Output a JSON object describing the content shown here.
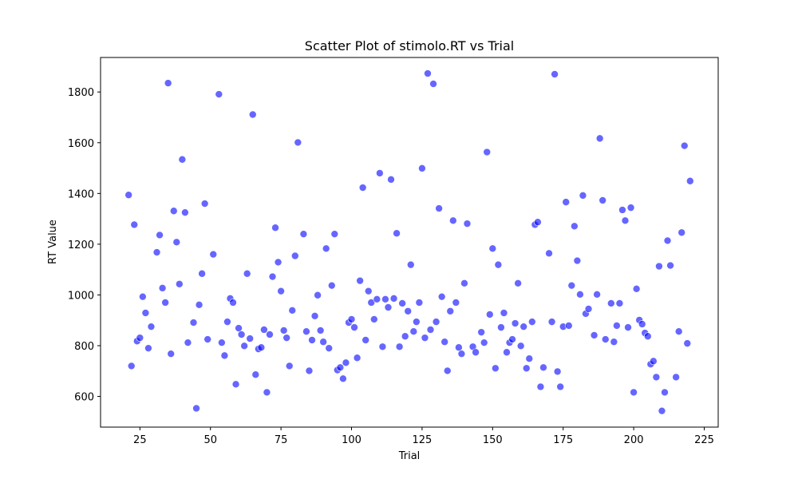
{
  "chart_data": {
    "type": "scatter",
    "title": "Scatter Plot of stimolo.RT vs Trial",
    "xlabel": "Trial",
    "ylabel": "RT Value",
    "color": "#0000ff",
    "alpha": 0.6,
    "x": [
      21,
      22,
      23,
      24,
      25,
      26,
      27,
      28,
      29,
      31,
      32,
      33,
      34,
      35,
      36,
      37,
      38,
      39,
      40,
      41,
      42,
      44,
      45,
      46,
      47,
      48,
      49,
      51,
      53,
      54,
      55,
      56,
      57,
      58,
      59,
      60,
      61,
      62,
      63,
      64,
      65,
      66,
      67,
      68,
      69,
      70,
      71,
      72,
      73,
      74,
      75,
      76,
      77,
      78,
      79,
      80,
      81,
      83,
      84,
      85,
      86,
      87,
      88,
      89,
      90,
      91,
      92,
      93,
      94,
      95,
      96,
      97,
      98,
      99,
      100,
      101,
      102,
      103,
      104,
      105,
      106,
      107,
      108,
      109,
      110,
      111,
      112,
      113,
      114,
      115,
      116,
      117,
      118,
      119,
      120,
      121,
      122,
      123,
      124,
      125,
      126,
      127,
      128,
      129,
      130,
      131,
      132,
      133,
      134,
      135,
      136,
      137,
      138,
      139,
      140,
      141,
      143,
      144,
      146,
      147,
      148,
      149,
      150,
      151,
      152,
      153,
      154,
      155,
      156,
      157,
      158,
      159,
      160,
      161,
      162,
      163,
      164,
      165,
      166,
      167,
      168,
      170,
      171,
      172,
      173,
      174,
      175,
      176,
      177,
      178,
      179,
      180,
      181,
      182,
      183,
      184,
      186,
      187,
      188,
      189,
      190,
      192,
      193,
      194,
      195,
      196,
      197,
      198,
      199,
      200,
      201,
      202,
      203,
      204,
      205,
      206,
      207,
      208,
      209,
      210,
      211,
      212,
      213,
      215,
      216,
      217,
      218,
      219,
      220
    ],
    "y": [
      1394,
      720,
      1277,
      818,
      831,
      993,
      929,
      790,
      875,
      1168,
      1236,
      1027,
      970,
      1835,
      768,
      1331,
      1208,
      1043,
      1534,
      1325,
      812,
      891,
      553,
      961,
      1084,
      1360,
      825,
      1160,
      1791,
      812,
      761,
      894,
      986,
      970,
      648,
      869,
      844,
      799,
      1084,
      828,
      1711,
      686,
      787,
      793,
      863,
      616,
      844,
      1072,
      1265,
      1129,
      1015,
      860,
      831,
      720,
      939,
      1154,
      1601,
      1240,
      856,
      701,
      822,
      917,
      999,
      860,
      815,
      1183,
      790,
      1037,
      1240,
      704,
      714,
      670,
      733,
      891,
      904,
      872,
      752,
      1056,
      1423,
      822,
      1015,
      970,
      904,
      983,
      1480,
      796,
      983,
      951,
      1455,
      986,
      1243,
      796,
      967,
      837,
      936,
      1119,
      856,
      894,
      970,
      1499,
      831,
      1873,
      863,
      1832,
      894,
      1341,
      993,
      815,
      701,
      936,
      1293,
      970,
      793,
      768,
      1046,
      1281,
      796,
      774,
      853,
      812,
      1563,
      923,
      1183,
      711,
      1119,
      872,
      929,
      774,
      812,
      825,
      888,
      1046,
      799,
      875,
      711,
      749,
      894,
      1277,
      1287,
      638,
      714,
      1164,
      894,
      1870,
      698,
      638,
      875,
      1366,
      879,
      1037,
      1271,
      1135,
      1002,
      1392,
      926,
      945,
      841,
      1002,
      1617,
      1373,
      825,
      967,
      815,
      879,
      967,
      1335,
      1293,
      872,
      1344,
      616,
      1024,
      901,
      885,
      850,
      837,
      727,
      739,
      676,
      1113,
      543,
      616,
      1214,
      1116,
      676,
      856,
      1246,
      1588,
      809,
      1449
    ],
    "xlim": [
      11.05,
      229.95
    ],
    "ylim": [
      479,
      1936
    ],
    "xticks": [
      25,
      50,
      75,
      100,
      125,
      150,
      175,
      200,
      225
    ],
    "yticks": [
      600,
      800,
      1000,
      1200,
      1400,
      1600,
      1800
    ]
  }
}
